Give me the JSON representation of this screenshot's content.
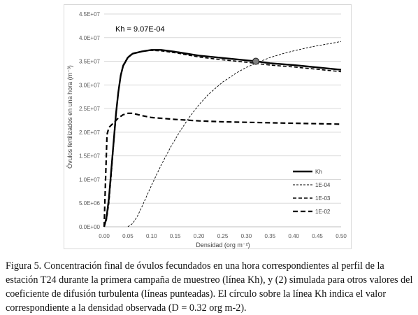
{
  "chart_data": {
    "type": "line",
    "ylabel": "Óvulos fertilizados en una hora (m⁻³)",
    "xlabel": "Densidad (org m⁻²)",
    "xlim": [
      0,
      0.5
    ],
    "ylim": [
      0,
      45000000
    ],
    "x_ticks": [
      "0.00",
      "0.05",
      "0.10",
      "0.15",
      "0.20",
      "0.25",
      "0.30",
      "0.35",
      "0.40",
      "0.45",
      "0.50"
    ],
    "y_ticks": [
      "0.0E+00",
      "5.0E+06",
      "1.0E+07",
      "1.5E+07",
      "2.0E+07",
      "2.5E+07",
      "3.0E+07",
      "3.5E+07",
      "4.0E+07",
      "4.5E+07"
    ],
    "annotation": "Kh = 9.07E-04",
    "legend_position": "bottom-right",
    "grid": "horizontal",
    "marker": {
      "x": 0.32,
      "y": 35000000
    },
    "series": [
      {
        "name": "Kh",
        "style": "solid-thick",
        "points": [
          [
            0,
            0
          ],
          [
            0.005,
            2000000
          ],
          [
            0.01,
            6000000
          ],
          [
            0.015,
            12000000
          ],
          [
            0.02,
            18000000
          ],
          [
            0.025,
            24000000
          ],
          [
            0.03,
            28500000
          ],
          [
            0.035,
            32000000
          ],
          [
            0.04,
            34000000
          ],
          [
            0.05,
            35800000
          ],
          [
            0.06,
            36600000
          ],
          [
            0.08,
            37100000
          ],
          [
            0.1,
            37400000
          ],
          [
            0.12,
            37400000
          ],
          [
            0.15,
            37000000
          ],
          [
            0.2,
            36200000
          ],
          [
            0.25,
            35700000
          ],
          [
            0.3,
            35200000
          ],
          [
            0.32,
            35000000
          ],
          [
            0.35,
            34600000
          ],
          [
            0.4,
            34200000
          ],
          [
            0.45,
            33700000
          ],
          [
            0.5,
            33200000
          ]
        ]
      },
      {
        "name": "1E-04",
        "style": "dotted-thin",
        "points": [
          [
            0.05,
            0
          ],
          [
            0.06,
            700000
          ],
          [
            0.07,
            2200000
          ],
          [
            0.08,
            4300000
          ],
          [
            0.1,
            8800000
          ],
          [
            0.12,
            13000000
          ],
          [
            0.14,
            16800000
          ],
          [
            0.16,
            20200000
          ],
          [
            0.18,
            23200000
          ],
          [
            0.2,
            25800000
          ],
          [
            0.22,
            28000000
          ],
          [
            0.25,
            30600000
          ],
          [
            0.28,
            32600000
          ],
          [
            0.3,
            33700000
          ],
          [
            0.33,
            35000000
          ],
          [
            0.35,
            35800000
          ],
          [
            0.38,
            36700000
          ],
          [
            0.4,
            37200000
          ],
          [
            0.43,
            37900000
          ],
          [
            0.45,
            38300000
          ],
          [
            0.48,
            38800000
          ],
          [
            0.5,
            39200000
          ]
        ]
      },
      {
        "name": "1E-03",
        "style": "dashed-medium",
        "points": [
          [
            0,
            0
          ],
          [
            0.005,
            1500000
          ],
          [
            0.01,
            5000000
          ],
          [
            0.015,
            11000000
          ],
          [
            0.02,
            17500000
          ],
          [
            0.025,
            23500000
          ],
          [
            0.03,
            28500000
          ],
          [
            0.035,
            32000000
          ],
          [
            0.04,
            34200000
          ],
          [
            0.05,
            35900000
          ],
          [
            0.06,
            36700000
          ],
          [
            0.08,
            37100000
          ],
          [
            0.1,
            37300000
          ],
          [
            0.12,
            37200000
          ],
          [
            0.15,
            36800000
          ],
          [
            0.2,
            35900000
          ],
          [
            0.25,
            35300000
          ],
          [
            0.3,
            34800000
          ],
          [
            0.35,
            34200000
          ],
          [
            0.4,
            33800000
          ],
          [
            0.45,
            33300000
          ],
          [
            0.5,
            32800000
          ]
        ]
      },
      {
        "name": "1E-02",
        "style": "dashed-thick",
        "points": [
          [
            0,
            0
          ],
          [
            0.003,
            10000000
          ],
          [
            0.006,
            19500000
          ],
          [
            0.01,
            21000000
          ],
          [
            0.02,
            22000000
          ],
          [
            0.03,
            23000000
          ],
          [
            0.04,
            23700000
          ],
          [
            0.05,
            24000000
          ],
          [
            0.06,
            24000000
          ],
          [
            0.08,
            23500000
          ],
          [
            0.1,
            23100000
          ],
          [
            0.15,
            22700000
          ],
          [
            0.2,
            22400000
          ],
          [
            0.25,
            22200000
          ],
          [
            0.3,
            22100000
          ],
          [
            0.35,
            22000000
          ],
          [
            0.4,
            21900000
          ],
          [
            0.45,
            21800000
          ],
          [
            0.5,
            21700000
          ]
        ]
      }
    ]
  },
  "caption": {
    "lines": [
      "Figura 5. Concentración final de óvulos fecundados en una hora correspondientes al perfil",
      "de la estación T24 durante la primera campaña de muestreo (línea Kh), y (2) simulada para",
      "otros valores del coeficiente de difusión turbulenta (líneas punteadas). El círculo sobre la",
      "línea Kh indica el valor correspondiente a la densidad observada (D = 0.32 org m-2)."
    ]
  }
}
